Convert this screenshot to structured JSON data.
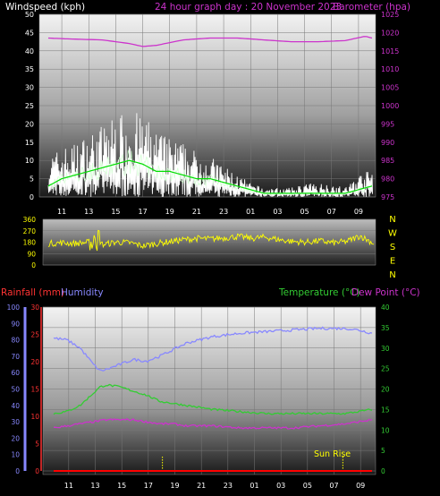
{
  "header": {
    "windspeed_label": "Windspeed (kph)",
    "title": "24 hour graph day : 20 November 2023",
    "barometer_label": "Barometer (hpa)"
  },
  "bottom_header": {
    "rainfall_label": "Rainfall (mm)",
    "humidity_label": "Humidity",
    "temperature_label": "Temperature (°C)",
    "dewpoint_label": "Dew Point (°C)"
  },
  "sunrise_label": "Sun Rise",
  "colors": {
    "wind": "#ffffff",
    "wind_avg": "#00dd00",
    "pressure": "#cc33cc",
    "direction": "#ffff00",
    "humidity": "#8888ff",
    "temperature": "#33cc33",
    "dewpoint": "#cc33cc",
    "rainfall": "#ff0000",
    "axis_left_top": "#ffffff",
    "axis_right_top": "#cc33cc",
    "axis_temp": "#33cc33",
    "axis_humidity": "#8888ff",
    "axis_rain": "#ff3333"
  },
  "chart_data": [
    {
      "type": "line",
      "panel": "wind-pressure",
      "x_ticks": [
        "11",
        "13",
        "15",
        "17",
        "19",
        "21",
        "23",
        "01",
        "03",
        "05",
        "07",
        "09"
      ],
      "ylim_left": [
        0,
        50
      ],
      "ylim_right": [
        975,
        1025
      ],
      "y_ticks_left": [
        "0",
        "5",
        "10",
        "15",
        "20",
        "25",
        "30",
        "35",
        "40",
        "45",
        "50"
      ],
      "y_ticks_right": [
        "975",
        "980",
        "985",
        "990",
        "995",
        "1000",
        "1005",
        "1010",
        "1015",
        "1020",
        "1025"
      ],
      "series": [
        {
          "name": "Windspeed (kph)",
          "axis": "left",
          "style": "gust",
          "hours": [
            0,
            1,
            2,
            3,
            4,
            5,
            6,
            7,
            8,
            9,
            10,
            11,
            12,
            13,
            14,
            15,
            16,
            17,
            18,
            19,
            20,
            21,
            22,
            23,
            24
          ],
          "values": [
            9,
            11,
            12,
            14,
            16,
            18,
            19,
            18,
            15,
            13,
            12,
            10,
            9,
            7,
            5,
            3,
            2,
            2,
            2,
            3,
            3,
            3,
            2,
            5,
            6
          ]
        },
        {
          "name": "Windspeed avg",
          "axis": "left",
          "style": "avg",
          "hours": [
            0,
            1,
            2,
            3,
            4,
            5,
            6,
            7,
            8,
            9,
            10,
            11,
            12,
            13,
            14,
            15,
            16,
            17,
            18,
            19,
            20,
            21,
            22,
            23,
            24
          ],
          "values": [
            3,
            5,
            6,
            7,
            8,
            9,
            10,
            9,
            7,
            7,
            6,
            5,
            5,
            4,
            3,
            2,
            1,
            1,
            1,
            1,
            1,
            1,
            1,
            2,
            3
          ]
        },
        {
          "name": "Barometer (hpa)",
          "axis": "right",
          "hours": [
            0,
            2,
            4,
            6,
            7,
            8,
            10,
            12,
            14,
            16,
            18,
            20,
            22,
            23.5,
            24
          ],
          "values": [
            1018.5,
            1018.2,
            1018,
            1017,
            1016.2,
            1016.5,
            1018,
            1018.5,
            1018.5,
            1018,
            1017.5,
            1017.5,
            1017.8,
            1019,
            1018.5
          ]
        }
      ]
    },
    {
      "type": "line",
      "panel": "wind-direction",
      "x_ticks": [],
      "ylim": [
        0,
        360
      ],
      "y_ticks": [
        "0",
        "90",
        "180",
        "270",
        "360"
      ],
      "y_ticks_right": [
        "N",
        "W",
        "S",
        "E",
        "N"
      ],
      "series": [
        {
          "name": "Wind Direction",
          "hours": [
            0,
            1,
            2,
            3,
            3.5,
            4,
            5,
            6,
            7,
            8,
            9,
            10,
            11,
            12,
            13,
            14,
            15,
            16,
            17,
            18,
            19,
            20,
            21,
            22,
            23,
            24
          ],
          "values": [
            170,
            175,
            170,
            180,
            230,
            160,
            180,
            175,
            150,
            170,
            185,
            200,
            210,
            205,
            215,
            225,
            210,
            220,
            200,
            185,
            180,
            190,
            175,
            185,
            230,
            170
          ]
        }
      ]
    },
    {
      "type": "line",
      "panel": "temp-humidity-rain",
      "x_ticks": [
        "11",
        "13",
        "15",
        "17",
        "19",
        "21",
        "23",
        "01",
        "03",
        "05",
        "07",
        "09"
      ],
      "ylim_humidity": [
        0,
        100
      ],
      "ylim_rain": [
        0,
        30
      ],
      "ylim_temp": [
        0,
        40
      ],
      "y_ticks_humidity": [
        "0",
        "10",
        "20",
        "30",
        "40",
        "50",
        "60",
        "70",
        "80",
        "90",
        "100"
      ],
      "y_ticks_rain": [
        "0",
        "5",
        "10",
        "15",
        "20",
        "25",
        "30"
      ],
      "y_ticks_temp": [
        "0",
        "5",
        "10",
        "15",
        "20",
        "25",
        "30",
        "35",
        "40"
      ],
      "series": [
        {
          "name": "Humidity",
          "axis": "humidity",
          "hours": [
            0,
            1,
            2,
            3,
            3.5,
            4,
            5,
            6,
            7,
            8,
            9,
            10,
            12,
            14,
            16,
            18,
            20,
            22,
            23,
            24
          ],
          "values": [
            81,
            80,
            75,
            65,
            61,
            62,
            65,
            68,
            67,
            70,
            74,
            78,
            82,
            84,
            85,
            86,
            87,
            87,
            86,
            84
          ]
        },
        {
          "name": "Temperature (°C)",
          "axis": "temp",
          "hours": [
            0,
            1,
            2,
            3,
            3.5,
            4,
            5,
            6,
            7,
            8,
            9,
            10,
            12,
            14,
            16,
            18,
            20,
            22,
            23,
            24
          ],
          "values": [
            14,
            14.5,
            16,
            19,
            20.5,
            21,
            20.5,
            19.5,
            18.5,
            17,
            16.5,
            16,
            15,
            14.5,
            14,
            14,
            14,
            14,
            14.5,
            15
          ]
        },
        {
          "name": "Dew Point (°C)",
          "axis": "temp",
          "hours": [
            0,
            1,
            2,
            3,
            4,
            5,
            6,
            7,
            8,
            9,
            10,
            12,
            14,
            16,
            18,
            20,
            22,
            24
          ],
          "values": [
            10.5,
            11,
            11.5,
            12,
            12.5,
            12.5,
            12.5,
            12,
            11.5,
            11.5,
            11,
            11,
            10.5,
            10.5,
            10.5,
            11,
            11.5,
            12.5
          ]
        },
        {
          "name": "Rainfall (mm)",
          "axis": "rain",
          "hours": [
            0,
            24
          ],
          "values": [
            0,
            0
          ]
        }
      ],
      "sunrise_hour": 21.8
    }
  ]
}
